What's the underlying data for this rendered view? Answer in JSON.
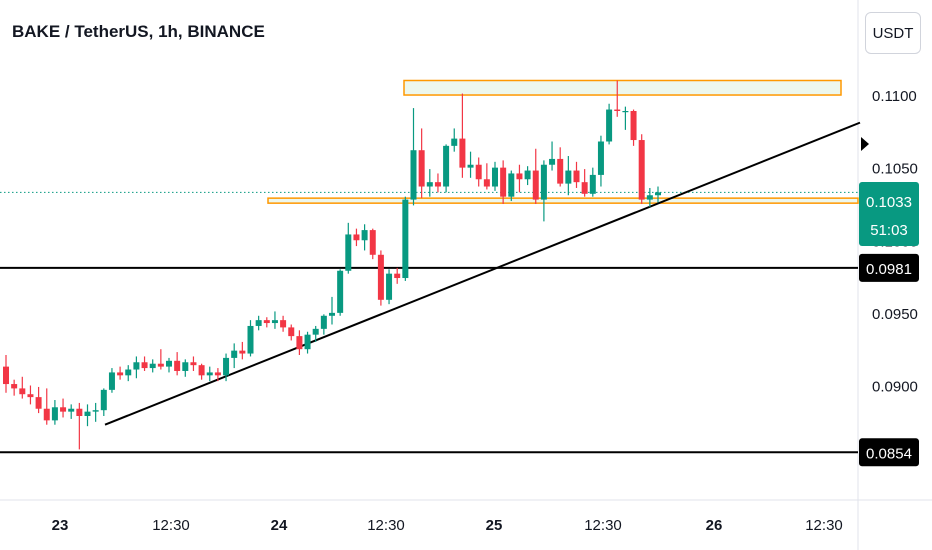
{
  "header": {
    "symbol_title": "BAKE / TetherUS, 1h, BINANCE",
    "currency_button": "USDT"
  },
  "price_badge": {
    "price": "0.1033",
    "countdown": "51:03",
    "color": "#089981"
  },
  "colors": {
    "up": "#089981",
    "down": "#f23645",
    "zone_stroke": "#ff9800",
    "zone_fill": "#e8f5e9",
    "lines": "#000000"
  },
  "chart_data": {
    "type": "candlestick",
    "ylim": [
      0.0837,
      0.1131
    ],
    "y_ticks": [
      "0.1100",
      "0.1050",
      "0.1000",
      "0.0950",
      "0.0900"
    ],
    "x_ticks": [
      "23",
      "12:30",
      "24",
      "12:30",
      "25",
      "12:30",
      "26",
      "12:30"
    ],
    "horizontal_lines": [
      {
        "price": 0.0981,
        "label": "0.0981"
      },
      {
        "price": 0.0854,
        "label": "0.0854"
      }
    ],
    "current_price": 0.1033,
    "zones": [
      {
        "from": 0.11,
        "to": 0.111
      },
      {
        "from": 0.1026,
        "to": 0.1029
      }
    ],
    "trendline": {
      "from_bar": 12,
      "from_price": 0.0873,
      "to_bar": 107,
      "to_price": 0.1081
    },
    "candles": [
      [
        0.0913,
        0.0921,
        0.0895,
        0.0901
      ],
      [
        0.0901,
        0.0904,
        0.0893,
        0.0898
      ],
      [
        0.0898,
        0.0906,
        0.0891,
        0.0894
      ],
      [
        0.0894,
        0.09,
        0.0887,
        0.0892
      ],
      [
        0.0892,
        0.0899,
        0.0881,
        0.0884
      ],
      [
        0.0884,
        0.0898,
        0.0873,
        0.0876
      ],
      [
        0.0876,
        0.089,
        0.0873,
        0.0885
      ],
      [
        0.0885,
        0.0891,
        0.0878,
        0.0882
      ],
      [
        0.0882,
        0.0887,
        0.0877,
        0.0884
      ],
      [
        0.0884,
        0.0888,
        0.0856,
        0.0879
      ],
      [
        0.0879,
        0.0887,
        0.0872,
        0.0882
      ],
      [
        0.0882,
        0.0888,
        0.0875,
        0.0883
      ],
      [
        0.0883,
        0.0898,
        0.0879,
        0.0897
      ],
      [
        0.0897,
        0.0912,
        0.0895,
        0.0909
      ],
      [
        0.0909,
        0.0913,
        0.0904,
        0.0907
      ],
      [
        0.0907,
        0.0914,
        0.0903,
        0.0911
      ],
      [
        0.0911,
        0.092,
        0.0905,
        0.0916
      ],
      [
        0.0916,
        0.092,
        0.091,
        0.0912
      ],
      [
        0.0912,
        0.0918,
        0.0909,
        0.0915
      ],
      [
        0.0915,
        0.0925,
        0.0911,
        0.0913
      ],
      [
        0.0913,
        0.0919,
        0.0909,
        0.0917
      ],
      [
        0.0917,
        0.0923,
        0.0907,
        0.091
      ],
      [
        0.091,
        0.0918,
        0.0906,
        0.0916
      ],
      [
        0.0916,
        0.092,
        0.091,
        0.0914
      ],
      [
        0.0914,
        0.0915,
        0.0904,
        0.0907
      ],
      [
        0.0907,
        0.0913,
        0.0903,
        0.0909
      ],
      [
        0.0909,
        0.0912,
        0.0903,
        0.0907
      ],
      [
        0.0907,
        0.0922,
        0.0903,
        0.0919
      ],
      [
        0.0919,
        0.0929,
        0.0912,
        0.0924
      ],
      [
        0.0924,
        0.093,
        0.0918,
        0.0922
      ],
      [
        0.0922,
        0.0945,
        0.092,
        0.0941
      ],
      [
        0.0941,
        0.0948,
        0.0938,
        0.0945
      ],
      [
        0.0945,
        0.0947,
        0.094,
        0.0943
      ],
      [
        0.0943,
        0.0951,
        0.0939,
        0.0945
      ],
      [
        0.0945,
        0.0948,
        0.0937,
        0.094
      ],
      [
        0.094,
        0.0942,
        0.0931,
        0.0934
      ],
      [
        0.0934,
        0.0938,
        0.0921,
        0.0925
      ],
      [
        0.0925,
        0.0937,
        0.0922,
        0.0935
      ],
      [
        0.0935,
        0.0941,
        0.093,
        0.0939
      ],
      [
        0.0939,
        0.0949,
        0.0935,
        0.0948
      ],
      [
        0.0948,
        0.0961,
        0.0942,
        0.095
      ],
      [
        0.095,
        0.098,
        0.0948,
        0.0979
      ],
      [
        0.0979,
        0.1012,
        0.0977,
        0.1004
      ],
      [
        0.1004,
        0.1008,
        0.0996,
        0.1
      ],
      [
        0.1,
        0.1011,
        0.0993,
        0.1007
      ],
      [
        0.1007,
        0.1008,
        0.0987,
        0.099
      ],
      [
        0.099,
        0.0993,
        0.0955,
        0.0959
      ],
      [
        0.0959,
        0.098,
        0.0956,
        0.0977
      ],
      [
        0.0977,
        0.0981,
        0.097,
        0.0974
      ],
      [
        0.0974,
        0.103,
        0.0972,
        0.1028
      ],
      [
        0.1028,
        0.1091,
        0.1024,
        0.1062
      ],
      [
        0.1062,
        0.1077,
        0.1029,
        0.1037
      ],
      [
        0.1037,
        0.1049,
        0.103,
        0.104
      ],
      [
        0.104,
        0.1046,
        0.1033,
        0.1037
      ],
      [
        0.1037,
        0.1066,
        0.1033,
        0.1065
      ],
      [
        0.1065,
        0.1077,
        0.1061,
        0.107
      ],
      [
        0.107,
        0.1101,
        0.1043,
        0.105
      ],
      [
        0.105,
        0.1061,
        0.1043,
        0.1052
      ],
      [
        0.1052,
        0.1057,
        0.1037,
        0.1042
      ],
      [
        0.1042,
        0.1053,
        0.1035,
        0.1037
      ],
      [
        0.1037,
        0.1054,
        0.1034,
        0.105
      ],
      [
        0.105,
        0.1055,
        0.1025,
        0.103
      ],
      [
        0.103,
        0.1048,
        0.1027,
        0.1046
      ],
      [
        0.1046,
        0.1052,
        0.1033,
        0.1042
      ],
      [
        0.1042,
        0.1051,
        0.1038,
        0.1048
      ],
      [
        0.1048,
        0.1063,
        0.1025,
        0.1028
      ],
      [
        0.1028,
        0.1055,
        0.1013,
        0.1052
      ],
      [
        0.1052,
        0.1068,
        0.1048,
        0.1056
      ],
      [
        0.1056,
        0.1064,
        0.1037,
        0.1039
      ],
      [
        0.1039,
        0.1058,
        0.1031,
        0.1048
      ],
      [
        0.1048,
        0.1054,
        0.1036,
        0.104
      ],
      [
        0.104,
        0.1049,
        0.103,
        0.1032
      ],
      [
        0.1032,
        0.105,
        0.103,
        0.1045
      ],
      [
        0.1045,
        0.1072,
        0.1037,
        0.1068
      ],
      [
        0.1068,
        0.1094,
        0.1066,
        0.109
      ],
      [
        0.109,
        0.111,
        0.1085,
        0.1089
      ],
      [
        0.1089,
        0.1092,
        0.1076,
        0.1089
      ],
      [
        0.1089,
        0.109,
        0.1065,
        0.1069
      ],
      [
        0.1069,
        0.1073,
        0.1025,
        0.1028
      ],
      [
        0.1028,
        0.1036,
        0.1023,
        0.1031
      ],
      [
        0.1031,
        0.1037,
        0.1026,
        0.1033
      ]
    ]
  }
}
